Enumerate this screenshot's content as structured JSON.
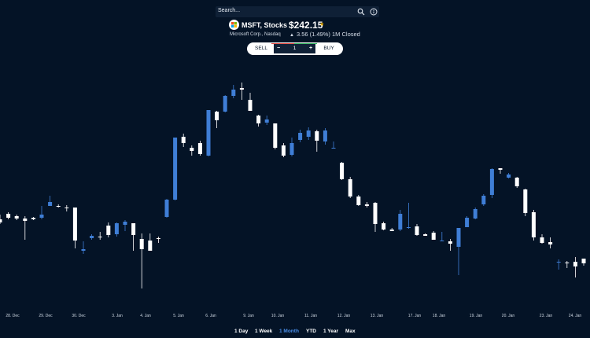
{
  "search": {
    "placeholder": "Search..."
  },
  "quote": {
    "symbol_title": "MSFT, Stocks",
    "price": "$242.15",
    "company": "Microsoft Corp., Nasdaq",
    "change": "3.56 (1.49%) 1M Closed"
  },
  "trade": {
    "sell_label": "SELL",
    "buy_label": "BUY",
    "minus": "−",
    "plus": "+",
    "quantity": "1"
  },
  "colors": {
    "up": "#3f7ed6",
    "down": "#ffffff",
    "background": "#041326",
    "active_range": "#4a8ee8"
  },
  "icons": {
    "search": "search-icon",
    "info": "info-icon",
    "star": "star-icon",
    "logo": "microsoft-logo",
    "up": "up-arrow-icon"
  },
  "ranges": [
    {
      "label": "1 Day",
      "active": false
    },
    {
      "label": "1 Week",
      "active": false
    },
    {
      "label": "1 Month",
      "active": true
    },
    {
      "label": "YTD",
      "active": false
    },
    {
      "label": "1 Year",
      "active": false
    },
    {
      "label": "Max",
      "active": false
    }
  ],
  "chart_data": {
    "type": "candlestick",
    "x_ticks": [
      "28. Dec",
      "29. Dec",
      "30. Dec",
      "3. Jan",
      "4. Jan",
      "5. Jan",
      "6. Jan",
      "9. Jan",
      "10. Jan",
      "11. Jan",
      "12. Jan",
      "13. Jan",
      "17. Jan",
      "18. Jan",
      "19. Jan",
      "20. Jan",
      "23. Jan",
      "24. Jan"
    ],
    "grid": false,
    "candles": [
      [
        186,
        182,
        192,
        180
      ],
      [
        193,
        188,
        195,
        186
      ],
      [
        190,
        187,
        192,
        185
      ],
      [
        187,
        184,
        190,
        160
      ],
      [
        188,
        186,
        189,
        185
      ],
      [
        188,
        192,
        203,
        186
      ],
      [
        203,
        208,
        216,
        204
      ],
      [
        203,
        202,
        205,
        201
      ],
      [
        201,
        200,
        204,
        196
      ],
      [
        201,
        159,
        160,
        149
      ],
      [
        146,
        148,
        158,
        142
      ],
      [
        162,
        165,
        167,
        160
      ],
      [
        164,
        163,
        170,
        160
      ],
      [
        178,
        166,
        182,
        163
      ],
      [
        167,
        181,
        182,
        164
      ],
      [
        179,
        183,
        185,
        171
      ],
      [
        181,
        166,
        181,
        146
      ],
      [
        161,
        148,
        168,
        98
      ],
      [
        159,
        146,
        168,
        149
      ],
      [
        162,
        161,
        164,
        156
      ],
      [
        189,
        211,
        212,
        188
      ],
      [
        211,
        290,
        290,
        210
      ],
      [
        291,
        283,
        295,
        278
      ],
      [
        277,
        273,
        280,
        267
      ],
      [
        283,
        269,
        286,
        267
      ],
      [
        267,
        325,
        325,
        266
      ],
      [
        323,
        312,
        324,
        302
      ],
      [
        323,
        343,
        344,
        322
      ],
      [
        343,
        351,
        357,
        340
      ],
      [
        353,
        351,
        360,
        338
      ],
      [
        338,
        324,
        347,
        336
      ],
      [
        318,
        308,
        319,
        304
      ],
      [
        309,
        313,
        318,
        306
      ],
      [
        308,
        277,
        306,
        275
      ],
      [
        280,
        267,
        283,
        265
      ],
      [
        268,
        283,
        290,
        266
      ],
      [
        287,
        296,
        300,
        284
      ],
      [
        291,
        299,
        303,
        287
      ],
      [
        298,
        286,
        300,
        272
      ],
      [
        285,
        299,
        302,
        281
      ],
      [
        277,
        277,
        285,
        276
      ],
      [
        258,
        237,
        259,
        236
      ],
      [
        237,
        215,
        240,
        213
      ],
      [
        215,
        204,
        217,
        203
      ],
      [
        205,
        203,
        208,
        201
      ],
      [
        207,
        180,
        208,
        170
      ],
      [
        181,
        173,
        183,
        172
      ],
      [
        173,
        171,
        175,
        171
      ],
      [
        173,
        193,
        198,
        171
      ],
      [
        176,
        176,
        207,
        174
      ],
      [
        177,
        166,
        180,
        165
      ],
      [
        167,
        165,
        168,
        165
      ],
      [
        169,
        160,
        171,
        160
      ],
      [
        159,
        159,
        170,
        158
      ],
      [
        158,
        155,
        161,
        146
      ],
      [
        151,
        175,
        175,
        115
      ],
      [
        176,
        188,
        190,
        177
      ],
      [
        187,
        199,
        201,
        186
      ],
      [
        205,
        216,
        218,
        203
      ],
      [
        217,
        250,
        251,
        213
      ],
      [
        251,
        249,
        251,
        244
      ],
      [
        239,
        243,
        245,
        238
      ],
      [
        239,
        228,
        240,
        226
      ],
      [
        224,
        194,
        225,
        190
      ],
      [
        195,
        163,
        198,
        159
      ],
      [
        163,
        156,
        167,
        155
      ],
      [
        157,
        154,
        163,
        149
      ],
      [
        132,
        132,
        135,
        122
      ],
      [
        131,
        130,
        133,
        124
      ],
      [
        132,
        126,
        138,
        112
      ],
      [
        136,
        130,
        132,
        127
      ],
      [
        126,
        128,
        130,
        124
      ],
      [
        126,
        133,
        139,
        124
      ],
      [
        133,
        143,
        147,
        131
      ]
    ]
  }
}
